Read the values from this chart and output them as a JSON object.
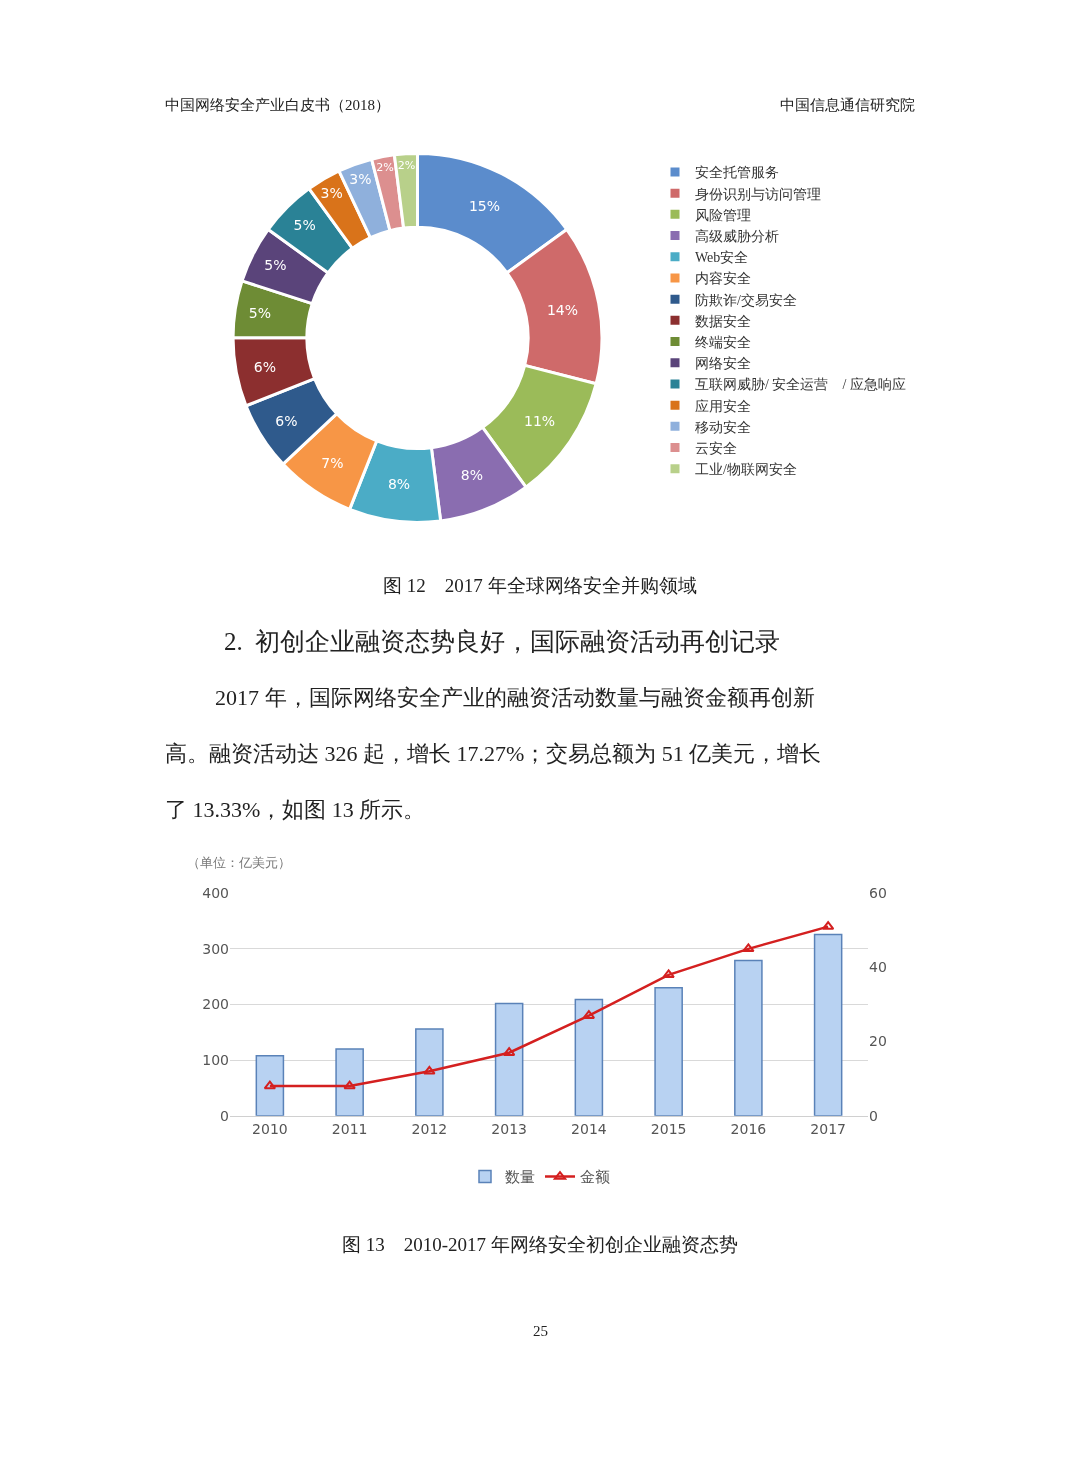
{
  "chart_data": [
    {
      "type": "donut",
      "title": "图 12　2017 年全球网络安全并购领域",
      "categories": [
        "安全托管服务",
        "身份识别与访问管理",
        "风险管理",
        "高级威胁分析",
        "Web安全",
        "内容安全",
        "防欺诈/交易安全",
        "数据安全",
        "终端安全",
        "网络安全",
        "互联网威胁/ 安全运营　/ 应急响应",
        "应用安全",
        "移动安全",
        "云安全",
        "工业/物联网安全"
      ],
      "values": [
        15,
        14,
        11,
        8,
        8,
        7,
        6,
        6,
        5,
        5,
        5,
        3,
        3,
        2,
        2
      ],
      "value_labels": [
        "15%",
        "14%",
        "11%",
        "8%",
        "8%",
        "7%",
        "6%",
        "6%",
        "5%",
        "5%",
        "5%",
        "3%",
        "3%",
        "2%",
        "2%"
      ],
      "colors": [
        "#5b8ccc",
        "#cf6a6a",
        "#9bbb59",
        "#8a6db0",
        "#4bacc6",
        "#f79646",
        "#2f5a8c",
        "#8c2f2f",
        "#6e8c35",
        "#5a447a",
        "#2a8296",
        "#d9731a",
        "#8fb0dc",
        "#dc8f8f",
        "#b8d08a"
      ],
      "legend": "right",
      "annotations": [
        "中国网络安全产业白皮书（2018）",
        "中国信息通信研究院"
      ]
    },
    {
      "type": "bar",
      "title": "图 13　2010-2017 年网络安全初创企业融资态势",
      "categories": [
        "2010",
        "2011",
        "2012",
        "2013",
        "2014",
        "2015",
        "2016",
        "2017"
      ],
      "series": [
        {
          "name": "数量",
          "color": "#b8d2f2",
          "values": [
            108,
            120,
            156,
            202,
            209,
            230,
            279,
            326
          ]
        },
        {
          "name": "金额",
          "type": "line",
          "axis": "y2",
          "color": "#d42020",
          "marker": "triangle",
          "values": [
            8,
            8,
            12,
            17,
            27,
            38,
            45,
            51
          ]
        }
      ],
      "ylim": [
        0,
        400
      ],
      "yticks": [
        0,
        100,
        200,
        300,
        400
      ],
      "y2lim": [
        0,
        60
      ],
      "y2ticks": [
        0,
        20,
        40,
        60
      ],
      "grid": "y",
      "legend": "bottom",
      "annotations": [
        "2.  初创企业融资态势良好，国际融资活动再创记录",
        "2017 年，国际网络安全产业的融资活动数量与融资金额再创新",
        "高。融资活动达 326 起，增长 17.27%；交易总额为 51 亿美元，增长",
        "了 13.33%，如图 13 所示。",
        "（单位：亿美元）",
        "25"
      ]
    }
  ]
}
